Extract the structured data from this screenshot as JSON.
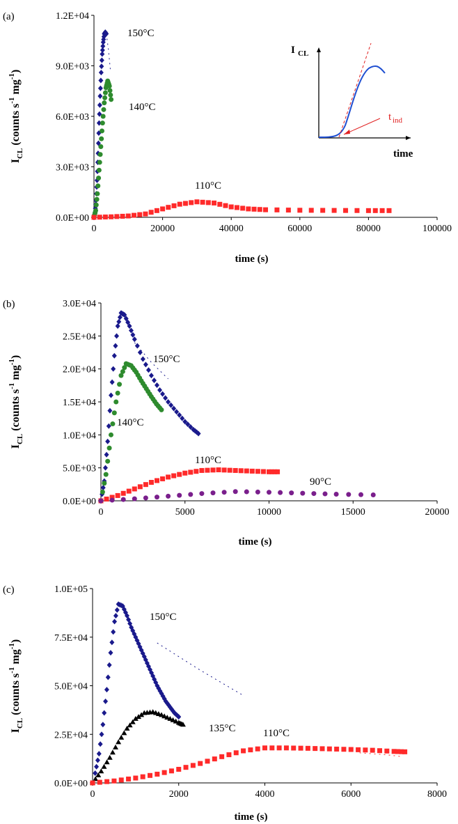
{
  "chart_data": [
    {
      "type": "scatter",
      "panel_label": "(a)",
      "xlabel": "time (s)",
      "ylabel_main": "I",
      "ylabel_sub": "CL",
      "ylabel_rest": " (counts s",
      "ylabel_exp1": "-1",
      "ylabel_rest2": " mg",
      "ylabel_exp2": "-1",
      "ylabel_close": ")",
      "xlim": [
        0,
        100000
      ],
      "ylim": [
        0,
        12000
      ],
      "xticks": [
        "0",
        "20000",
        "40000",
        "60000",
        "80000",
        "100000"
      ],
      "yticks": [
        "0.0E+00",
        "3.0E+03",
        "6.0E+03",
        "9.0E+03",
        "1.2E+04"
      ],
      "grid": false,
      "series": [
        {
          "name": "150°C",
          "color": "#1a1a8c",
          "marker": "diamond",
          "x": [
            0,
            300,
            600,
            900,
            1200,
            1500,
            1800,
            2100,
            2400,
            2700,
            3000,
            3300,
            3600
          ],
          "y": [
            0,
            300,
            1000,
            2200,
            3800,
            5600,
            7200,
            8600,
            9700,
            10400,
            10900,
            11000,
            10900
          ],
          "fit": {
            "x": [
              3600,
              4200,
              4800
            ],
            "y": [
              10900,
              10000,
              8700
            ]
          }
        },
        {
          "name": "140°C",
          "color": "#2e8b2e",
          "marker": "circle",
          "x": [
            0,
            500,
            1000,
            1500,
            2000,
            2500,
            3000,
            3500,
            4000,
            4500,
            5000
          ],
          "y": [
            0,
            400,
            1400,
            2800,
            4200,
            5600,
            6800,
            7700,
            8100,
            7800,
            7000
          ]
        },
        {
          "name": "110°C",
          "color": "#ff2a2a",
          "marker": "square",
          "x": [
            0,
            5000,
            10000,
            15000,
            20000,
            25000,
            30000,
            35000,
            40000,
            45000,
            50000,
            60000,
            70000,
            80000,
            86000
          ],
          "y": [
            0,
            30,
            80,
            200,
            500,
            780,
            920,
            850,
            620,
            500,
            450,
            420,
            410,
            400,
            400
          ]
        }
      ],
      "inset": {
        "ylabel_main": "I",
        "ylabel_sub": "CL",
        "xlabel": "time",
        "annotation_main": "t",
        "annotation_sub": "ind"
      }
    },
    {
      "type": "scatter",
      "panel_label": "(b)",
      "xlabel": "time (s)",
      "ylabel_main": "I",
      "ylabel_sub": "CL",
      "ylabel_rest": " (counts s",
      "ylabel_exp1": "-1",
      "ylabel_rest2": " mg",
      "ylabel_exp2": "-1",
      "ylabel_close": ")",
      "xlim": [
        0,
        20000
      ],
      "ylim": [
        0,
        30000
      ],
      "xticks": [
        "0",
        "5000",
        "10000",
        "15000",
        "20000"
      ],
      "yticks": [
        "0.0E+00",
        "5.0E+03",
        "1.0E+04",
        "1.5E+04",
        "2.0E+04",
        "2.5E+04",
        "3.0E+04"
      ],
      "grid": false,
      "series": [
        {
          "name": "150°C",
          "color": "#1a1a8c",
          "marker": "diamond",
          "x": [
            0,
            200,
            400,
            600,
            800,
            1000,
            1200,
            1400,
            1700,
            2000,
            2500,
            3000,
            3500,
            4000,
            4500,
            5000,
            5500,
            5800
          ],
          "y": [
            0,
            3000,
            9000,
            16000,
            22000,
            26500,
            28500,
            28200,
            26500,
            24500,
            21500,
            19000,
            16800,
            15000,
            13500,
            12000,
            10800,
            10200
          ],
          "fit": {
            "x": [
              2000,
              3000,
              4000
            ],
            "y": [
              24000,
              21000,
              18500
            ]
          }
        },
        {
          "name": "140°C",
          "color": "#2e8b2e",
          "marker": "circle",
          "x": [
            0,
            300,
            600,
            900,
            1200,
            1500,
            1800,
            2100,
            2400,
            2700,
            3000,
            3300,
            3600
          ],
          "y": [
            0,
            4000,
            10000,
            15000,
            19000,
            20800,
            20500,
            19500,
            18200,
            17000,
            15800,
            14700,
            13800
          ]
        },
        {
          "name": "110°C",
          "color": "#ff2a2a",
          "marker": "square",
          "x": [
            0,
            1000,
            2000,
            3000,
            4000,
            5000,
            6000,
            7000,
            8000,
            9000,
            10000,
            10500
          ],
          "y": [
            0,
            800,
            1800,
            2800,
            3600,
            4200,
            4600,
            4700,
            4600,
            4500,
            4400,
            4400
          ]
        },
        {
          "name": "90°C",
          "color": "#7a1f8c",
          "marker": "circle",
          "x": [
            0,
            2000,
            4000,
            6000,
            8000,
            10000,
            12000,
            14000,
            16200
          ],
          "y": [
            0,
            300,
            700,
            1100,
            1400,
            1300,
            1150,
            1000,
            900
          ]
        }
      ]
    },
    {
      "type": "scatter",
      "panel_label": "(c)",
      "xlabel": "time (s)",
      "ylabel_main": "I",
      "ylabel_sub": "CL",
      "ylabel_rest": " (counts s",
      "ylabel_exp1": "-1",
      "ylabel_rest2": " mg",
      "ylabel_exp2": "-1",
      "ylabel_close": ")",
      "xlim": [
        0,
        8000
      ],
      "ylim": [
        0,
        100000
      ],
      "xticks": [
        "0",
        "2000",
        "4000",
        "6000",
        "8000"
      ],
      "yticks": [
        "0.0E+00",
        "2.5E+04",
        "5.0E+04",
        "7.5E+04",
        "1.0E+05"
      ],
      "grid": false,
      "series": [
        {
          "name": "150°C",
          "color": "#1a1a8c",
          "marker": "diamond",
          "x": [
            60,
            150,
            240,
            330,
            420,
            510,
            600,
            700,
            800,
            900,
            1000,
            1100,
            1200,
            1300,
            1400,
            1500,
            1600,
            1700,
            1800,
            1900,
            2000
          ],
          "y": [
            5000,
            15000,
            30000,
            48000,
            67000,
            83000,
            92000,
            91000,
            86000,
            80000,
            75000,
            70000,
            65000,
            60000,
            55000,
            50000,
            46000,
            42000,
            39000,
            36000,
            34000
          ],
          "fit": {
            "x": [
              1500,
              2500,
              3500
            ],
            "y": [
              72000,
              58000,
              45000
            ]
          }
        },
        {
          "name": "135°C",
          "color": "#000000",
          "marker": "triangle",
          "x": [
            0,
            200,
            400,
            600,
            800,
            1000,
            1200,
            1400,
            1600,
            1800,
            2000,
            2100
          ],
          "y": [
            0,
            6000,
            13000,
            21000,
            28000,
            33000,
            36000,
            36500,
            35000,
            33000,
            31000,
            30000
          ]
        },
        {
          "name": "110°C",
          "color": "#ff2a2a",
          "marker": "square",
          "x": [
            0,
            500,
            1000,
            1500,
            2000,
            2500,
            3000,
            3500,
            4000,
            4500,
            5000,
            5500,
            6000,
            6500,
            7000,
            7250
          ],
          "y": [
            0,
            1000,
            2500,
            4500,
            7000,
            10000,
            13500,
            16500,
            18000,
            18000,
            17800,
            17500,
            17200,
            16800,
            16200,
            16000
          ],
          "fit": {
            "x": [
              6200,
              6800,
              7200
            ],
            "y": [
              15500,
              14500,
              13500
            ]
          }
        }
      ]
    }
  ]
}
